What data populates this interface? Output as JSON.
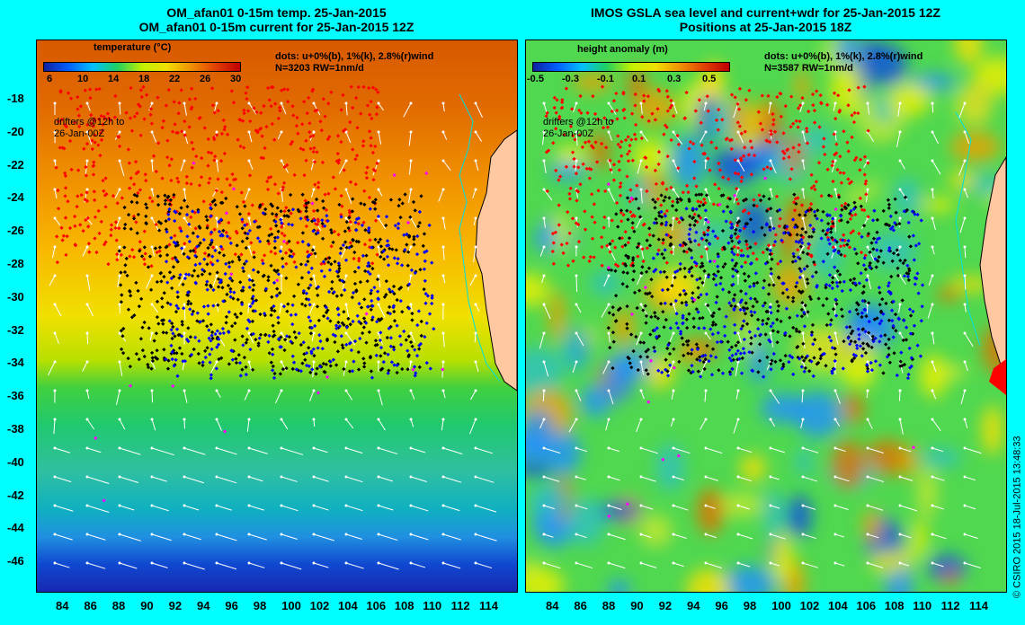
{
  "left_panel": {
    "title_line1": "OM_afan01 0-15m temp. 25-Jan-2015",
    "title_line2": "OM_afan01 0-15m current for 25-Jan-2015 12Z",
    "colorbar_label": "temperature (°C)",
    "colorbar_ticks": [
      "6",
      "10",
      "14",
      "18",
      "22",
      "26",
      "30"
    ],
    "dots_note": "dots: u+0%(b), 1%(k), 2.8%(r)wind",
    "count_note": "N=3203 RW=1nm/d",
    "drifters_note_1": "drifters @12h to",
    "drifters_note_2": "26-Jan-00Z"
  },
  "right_panel": {
    "title_line1": "IMOS GSLA sea level and current+wdr for 25-Jan-2015 12Z",
    "title_line2": "Positions at 25-Jan-2015 18Z",
    "colorbar_label": "height anomaly (m)",
    "colorbar_ticks": [
      "-0.5",
      "-0.3",
      "-0.1",
      "0.1",
      "0.3",
      "0.5"
    ],
    "dots_note": "dots: u+0%(b), 1%(k), 2.8%(r)wind",
    "count_note": "N=3587 RW=1nm/d",
    "drifters_note_1": "drifters @12h to",
    "drifters_note_2": "26-Jan-00Z"
  },
  "y_ticks": [
    "-18",
    "-20",
    "-22",
    "-24",
    "-26",
    "-28",
    "-30",
    "-32",
    "-34",
    "-36",
    "-38",
    "-40",
    "-42",
    "-44",
    "-46"
  ],
  "x_ticks": [
    "84",
    "86",
    "88",
    "90",
    "92",
    "94",
    "96",
    "98",
    "100",
    "102",
    "104",
    "106",
    "108",
    "110",
    "112",
    "114"
  ],
  "credit": "© CSIRO 2015   18-Jul-2015 13:48:33",
  "colors": {
    "background": "#00ffff",
    "land": "#ffc8a0",
    "coast": "#00e0e0",
    "dot_blue": "#0000ff",
    "dot_black": "#000000",
    "dot_red": "#ff0000",
    "dot_magenta": "#ff00ff",
    "arrow": "#ffffff"
  }
}
